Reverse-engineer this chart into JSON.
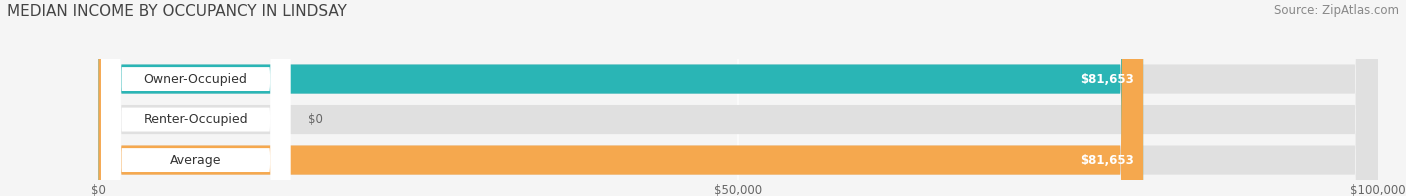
{
  "title": "MEDIAN INCOME BY OCCUPANCY IN LINDSAY",
  "source": "Source: ZipAtlas.com",
  "categories": [
    "Owner-Occupied",
    "Renter-Occupied",
    "Average"
  ],
  "values": [
    81653,
    0,
    81653
  ],
  "bar_colors": [
    "#2ab5b5",
    "#c8a8d8",
    "#f5a84e"
  ],
  "bar_bg_color": "#e8e8e8",
  "label_values": [
    "$81,653",
    "$0",
    "$81,653"
  ],
  "xmax": 100000,
  "xticks": [
    0,
    50000,
    100000
  ],
  "xtick_labels": [
    "$0",
    "$50,000",
    "$100,000"
  ],
  "title_fontsize": 11,
  "source_fontsize": 8.5,
  "bar_label_fontsize": 8.5,
  "cat_label_fontsize": 9,
  "figsize": [
    14.06,
    1.96
  ],
  "dpi": 100,
  "bg_color": "#f5f5f5",
  "bar_bg_light": "#e0e0e0"
}
